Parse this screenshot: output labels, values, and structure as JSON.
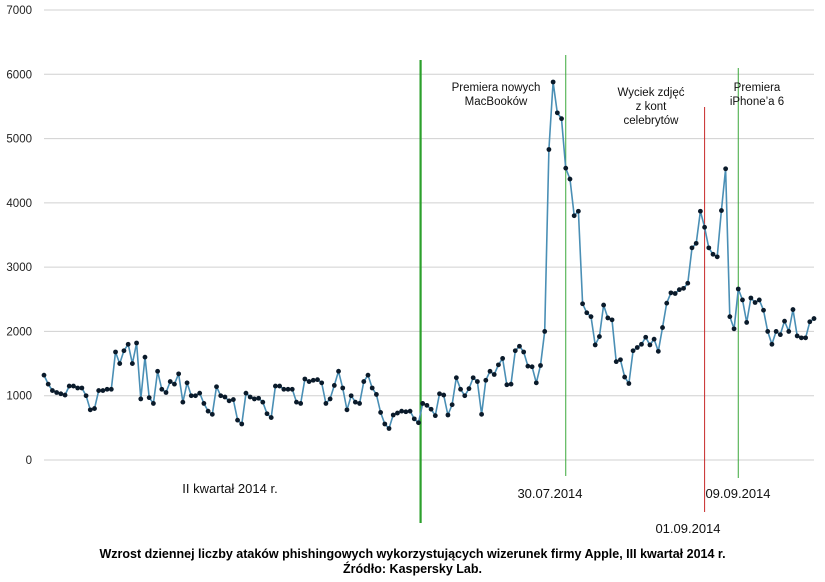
{
  "chart_data": {
    "type": "line",
    "title": "Wzrost dziennej liczby ataków phishingowych wykorzystujących wizerunek firmy Apple, III kwartał 2014 r.",
    "source": "Źródło: Kaspersky Lab.",
    "ylim": [
      0,
      7000
    ],
    "yticks": [
      "0",
      "1000",
      "2000",
      "3000",
      "4000",
      "5000",
      "6000",
      "7000"
    ],
    "grid": "horizontal",
    "line_color": "#4a8fb5",
    "marker_color": "#0a1a2a",
    "period_label": "II kwartał 2014 r.",
    "quarter_divider_color": "#2ca02c",
    "events": [
      {
        "date": "30.07.2014",
        "label": [
          "Premiera nowych",
          "MacBooków"
        ],
        "color": "#3aa83a"
      },
      {
        "date": "01.09.2014",
        "label": [
          "Wyciek zdjęć",
          "z kont",
          "celebrytów"
        ],
        "color": "#c62828"
      },
      {
        "date": "09.09.2014",
        "label": [
          "Premiera",
          "iPhone’a 6"
        ],
        "color": "#3aa83a"
      }
    ],
    "values": [
      1320,
      1180,
      1080,
      1050,
      1030,
      1010,
      1150,
      1150,
      1120,
      1120,
      1000,
      780,
      800,
      1080,
      1080,
      1100,
      1100,
      1680,
      1500,
      1700,
      1800,
      1500,
      1820,
      950,
      1600,
      970,
      880,
      1380,
      1100,
      1050,
      1220,
      1180,
      1340,
      900,
      1200,
      1000,
      1000,
      1040,
      880,
      760,
      710,
      1140,
      1000,
      980,
      920,
      940,
      620,
      560,
      1040,
      980,
      950,
      960,
      900,
      720,
      660,
      1150,
      1150,
      1100,
      1100,
      1100,
      900,
      880,
      1260,
      1220,
      1240,
      1250,
      1200,
      880,
      950,
      1160,
      1380,
      1120,
      780,
      1000,
      900,
      880,
      1220,
      1320,
      1120,
      1020,
      740,
      560,
      490,
      700,
      730,
      760,
      750,
      760,
      640,
      580,
      880,
      850,
      790,
      690,
      1030,
      1010,
      700,
      860,
      1280,
      1100,
      1000,
      1110,
      1280,
      1220,
      710,
      1240,
      1380,
      1330,
      1480,
      1580,
      1170,
      1180,
      1700,
      1770,
      1680,
      1460,
      1450,
      1200,
      1470,
      2000,
      4830,
      5880,
      5400,
      5310,
      4540,
      4370,
      3800,
      3870,
      2430,
      2290,
      2230,
      1790,
      1920,
      2410,
      2210,
      2180,
      1530,
      1560,
      1290,
      1190,
      1700,
      1750,
      1800,
      1910,
      1790,
      1880,
      1690,
      2060,
      2440,
      2600,
      2590,
      2650,
      2670,
      2750,
      3300,
      3370,
      3870,
      3620,
      3300,
      3200,
      3160,
      3880,
      4530,
      2230,
      2040,
      2660,
      2490,
      2140,
      2520,
      2450,
      2490,
      2330,
      2000,
      1800,
      2000,
      1950,
      2160,
      2000,
      2340,
      1930,
      1900,
      1900,
      2150,
      2200
    ],
    "quarter_boundary_after_index": 89,
    "event_indices": [
      124,
      157,
      165
    ]
  }
}
